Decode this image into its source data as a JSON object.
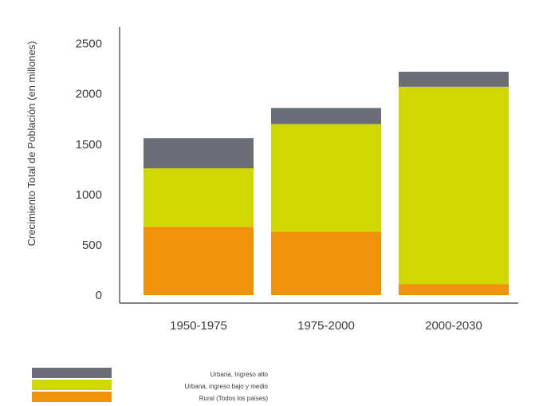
{
  "chart_data": {
    "type": "bar",
    "stacked": true,
    "title": "",
    "xlabel": "",
    "ylabel": "Crecimiento Total de Población (en millones)",
    "ylim": [
      0,
      2600
    ],
    "yticks": [
      0,
      500,
      1000,
      1500,
      2000,
      2500
    ],
    "grid": false,
    "legend_position": "bottom-left",
    "categories": [
      "1950-1975",
      "1975-2000",
      "2000-2030"
    ],
    "series": [
      {
        "name": "Rural (Todos los países)",
        "color": "#f0930a",
        "values": [
          680,
          630,
          110
        ]
      },
      {
        "name": "Urbana, ingreso bajo y medio",
        "color": "#cfd800",
        "values": [
          580,
          1070,
          1960
        ]
      },
      {
        "name": "Urbana, Ingreso alto",
        "color": "#6b6e78",
        "values": [
          300,
          160,
          150
        ]
      }
    ],
    "legend_order": [
      "Urbana, Ingreso alto",
      "Urbana, ingreso bajo y medio",
      "Rural (Todos los países)"
    ]
  }
}
